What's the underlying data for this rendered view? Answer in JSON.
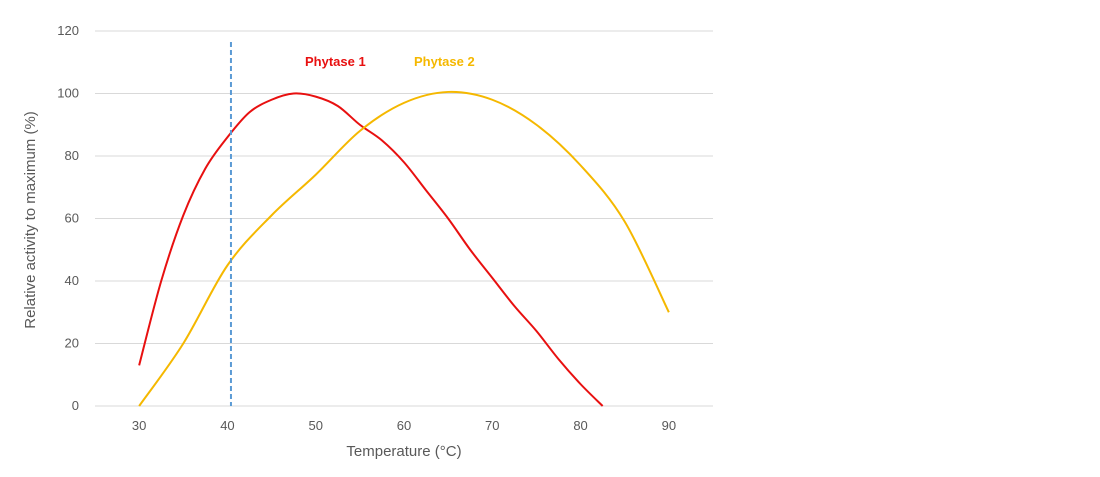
{
  "chart_data": {
    "type": "line",
    "title": "",
    "xlabel": "Temperature (°C)",
    "ylabel": "Relative activity to maximum (%)",
    "xlim": [
      25,
      95
    ],
    "ylim": [
      0,
      120
    ],
    "xticks": [
      30,
      40,
      50,
      60,
      70,
      80,
      90
    ],
    "yticks": [
      0,
      20,
      40,
      60,
      80,
      100,
      120
    ],
    "grid": "horizontal",
    "legend_placement": "top-center (inline labels)",
    "reference_line": {
      "x": 40.4,
      "style": "dashed",
      "color": "#5B9BD5"
    },
    "series": [
      {
        "name": "Phytase 1",
        "color": "#E81010",
        "x": [
          30,
          32.5,
          35,
          37.5,
          40,
          42.5,
          45,
          47.5,
          50,
          52.5,
          55,
          57.5,
          60,
          62.5,
          65,
          67.5,
          70,
          72.5,
          75,
          77.5,
          80,
          82.5
        ],
        "y": [
          13,
          40,
          61,
          76,
          86,
          94,
          98,
          100,
          99,
          96,
          90,
          85,
          78,
          69,
          60,
          50,
          41,
          32,
          24,
          15,
          7,
          0
        ]
      },
      {
        "name": "Phytase 2",
        "color": "#F5B800",
        "x": [
          30,
          35,
          40,
          45,
          50,
          55,
          60,
          65,
          70,
          75,
          80,
          85,
          90
        ],
        "y": [
          0,
          20,
          45,
          61,
          74,
          88,
          97,
          100.5,
          98,
          90,
          77,
          59,
          30
        ]
      }
    ]
  }
}
